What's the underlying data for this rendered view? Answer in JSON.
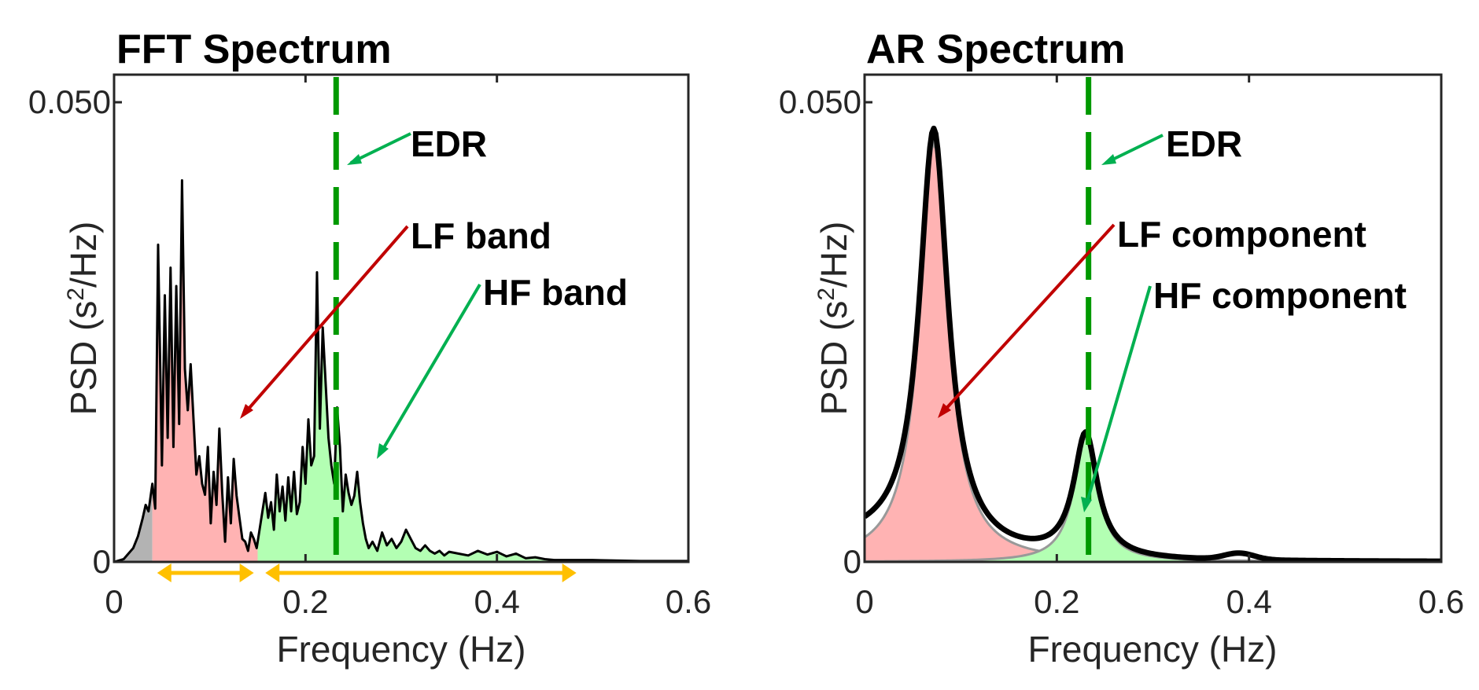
{
  "chart_data": [
    {
      "type": "area",
      "title": "FFT Spectrum",
      "xlabel": "Frequency (Hz)",
      "ylabel_prefix": "PSD (s",
      "ylabel_sup": "2",
      "ylabel_suffix": "/Hz)",
      "xlim": [
        0,
        0.6
      ],
      "ylim": [
        0,
        0.053
      ],
      "xticks": [
        0,
        0.2,
        0.4,
        0.6
      ],
      "xtick_labels": [
        "0",
        "0.2",
        "0.4",
        "0.6"
      ],
      "yticks": [
        0,
        0.05
      ],
      "ytick_labels": [
        "0",
        "0.050"
      ],
      "bands": [
        {
          "range": [
            0,
            0.04
          ],
          "color": "#b3b3b3"
        },
        {
          "range": [
            0.04,
            0.15
          ],
          "color": "#ffb3b3"
        },
        {
          "range": [
            0.15,
            0.6
          ],
          "color": "#b3ffb3"
        }
      ],
      "edr_line": 0.232,
      "band_arrows": [
        {
          "from": 0.045,
          "to": 0.146,
          "color": "#ffc000"
        },
        {
          "from": 0.158,
          "to": 0.483,
          "color": "#ffc000"
        }
      ],
      "series": [
        {
          "x": [
            0,
            0.01,
            0.02,
            0.025,
            0.03,
            0.033,
            0.036,
            0.04,
            0.043,
            0.046,
            0.05,
            0.053,
            0.056,
            0.059,
            0.062,
            0.065,
            0.068,
            0.071,
            0.074,
            0.077,
            0.08,
            0.083,
            0.086,
            0.089,
            0.092,
            0.095,
            0.098,
            0.101,
            0.104,
            0.107,
            0.11,
            0.113,
            0.116,
            0.119,
            0.122,
            0.125,
            0.128,
            0.131,
            0.134,
            0.137,
            0.14,
            0.143,
            0.146,
            0.149,
            0.152,
            0.155,
            0.158,
            0.161,
            0.164,
            0.167,
            0.17,
            0.173,
            0.176,
            0.179,
            0.182,
            0.185,
            0.188,
            0.191,
            0.194,
            0.197,
            0.2,
            0.203,
            0.206,
            0.209,
            0.212,
            0.215,
            0.218,
            0.221,
            0.224,
            0.227,
            0.23,
            0.233,
            0.236,
            0.239,
            0.242,
            0.245,
            0.248,
            0.251,
            0.254,
            0.257,
            0.26,
            0.263,
            0.266,
            0.27,
            0.275,
            0.28,
            0.285,
            0.29,
            0.295,
            0.3,
            0.305,
            0.31,
            0.315,
            0.32,
            0.325,
            0.33,
            0.335,
            0.34,
            0.345,
            0.35,
            0.36,
            0.37,
            0.38,
            0.39,
            0.4,
            0.41,
            0.42,
            0.43,
            0.44,
            0.45,
            0.46,
            0.48,
            0.5,
            0.55,
            0.6
          ],
          "y": [
            0,
            0.0003,
            0.0015,
            0.0028,
            0.0048,
            0.0062,
            0.0055,
            0.0085,
            0.0058,
            0.0345,
            0.0105,
            0.029,
            0.0135,
            0.032,
            0.0125,
            0.03,
            0.015,
            0.0415,
            0.021,
            0.0165,
            0.0215,
            0.0155,
            0.0095,
            0.0115,
            0.0085,
            0.0073,
            0.0125,
            0.0042,
            0.0098,
            0.0062,
            0.0145,
            0.0075,
            0.0022,
            0.0092,
            0.0042,
            0.0112,
            0.0072,
            0.0048,
            0.0025,
            0.0022,
            0.0012,
            0.0032,
            0.0025,
            0.0015,
            0.0035,
            0.0055,
            0.0075,
            0.0048,
            0.0065,
            0.0035,
            0.0095,
            0.0055,
            0.0082,
            0.0045,
            0.0092,
            0.0055,
            0.0098,
            0.0052,
            0.0065,
            0.0125,
            0.0085,
            0.0155,
            0.0105,
            0.0115,
            0.0315,
            0.0145,
            0.0255,
            0.0195,
            0.0135,
            0.0105,
            0.0085,
            0.0168,
            0.0125,
            0.0055,
            0.0095,
            0.0075,
            0.0062,
            0.0072,
            0.0098,
            0.0065,
            0.0042,
            0.0025,
            0.0015,
            0.0022,
            0.0012,
            0.0032,
            0.0018,
            0.0025,
            0.0015,
            0.0022,
            0.0035,
            0.0025,
            0.0015,
            0.0012,
            0.0018,
            0.0012,
            0.0009,
            0.0012,
            0.0007,
            0.0011,
            0.0009,
            0.0007,
            0.0012,
            0.0008,
            0.0011,
            0.0006,
            0.0009,
            0.0004,
            0.0005,
            0.0003,
            0.0002,
            0.0002,
            0.0002,
            0.0001,
            0.0001
          ]
        }
      ],
      "annotations": [
        {
          "text": "EDR",
          "color": "#00b050"
        },
        {
          "text": "LF band",
          "color": "#c00000"
        },
        {
          "text": "HF band",
          "color": "#00b050"
        }
      ]
    },
    {
      "type": "line",
      "title": "AR Spectrum",
      "xlabel": "Frequency (Hz)",
      "ylabel_prefix": "PSD (s",
      "ylabel_sup": "2",
      "ylabel_suffix": "/Hz)",
      "xlim": [
        0,
        0.6
      ],
      "ylim": [
        0,
        0.053
      ],
      "xticks": [
        0,
        0.2,
        0.4,
        0.6
      ],
      "xtick_labels": [
        "0",
        "0.2",
        "0.4",
        "0.6"
      ],
      "yticks": [
        0,
        0.05
      ],
      "ytick_labels": [
        "0",
        "0.050"
      ],
      "edr_line": 0.233,
      "components": [
        {
          "name": "LF component",
          "center": 0.072,
          "peak": 0.0455,
          "width": 0.018,
          "color": "#ffb3b3"
        },
        {
          "name": "HF component",
          "center": 0.23,
          "peak": 0.0135,
          "width": 0.015,
          "color": "#b3ffb3"
        }
      ],
      "total_spectrum_color": "#000000",
      "annotations": [
        {
          "text": "EDR",
          "color": "#00b050"
        },
        {
          "text": "LF component",
          "color": "#c00000"
        },
        {
          "text": "HF component",
          "color": "#00b050"
        }
      ]
    }
  ]
}
